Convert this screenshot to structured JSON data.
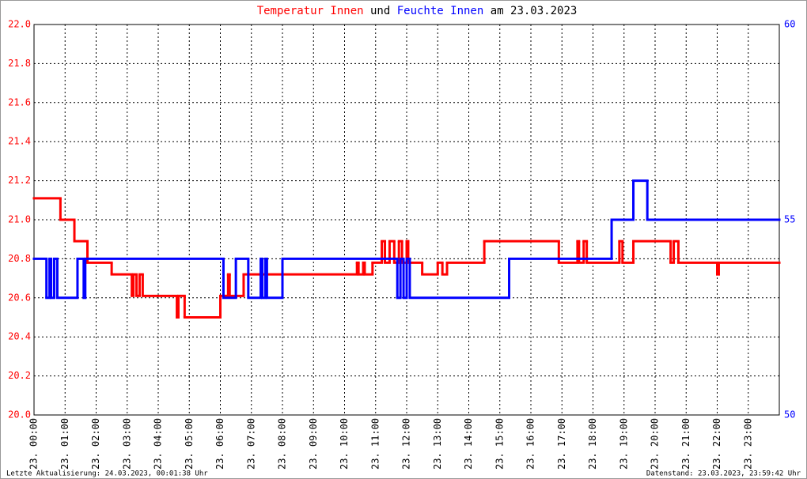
{
  "chart_data": {
    "type": "step-line",
    "title_joiner": "und",
    "title_date": "am 23.03.2023",
    "footer_left": "Letzte Aktualisierung: 24.03.2023, 00:01:38 Uhr",
    "footer_right": "Datenstand: 23.03.2023, 23:59:42 Uhr",
    "xlim": [
      0,
      24
    ],
    "xticks": [
      {
        "value": 0,
        "label": "23. 00:00"
      },
      {
        "value": 1,
        "label": "23. 01:00"
      },
      {
        "value": 2,
        "label": "23. 02:00"
      },
      {
        "value": 3,
        "label": "23. 03:00"
      },
      {
        "value": 4,
        "label": "23. 04:00"
      },
      {
        "value": 5,
        "label": "23. 05:00"
      },
      {
        "value": 6,
        "label": "23. 06:00"
      },
      {
        "value": 7,
        "label": "23. 07:00"
      },
      {
        "value": 8,
        "label": "23. 08:00"
      },
      {
        "value": 9,
        "label": "23. 09:00"
      },
      {
        "value": 10,
        "label": "23. 10:00"
      },
      {
        "value": 11,
        "label": "23. 11:00"
      },
      {
        "value": 12,
        "label": "23. 12:00"
      },
      {
        "value": 13,
        "label": "23. 13:00"
      },
      {
        "value": 14,
        "label": "23. 14:00"
      },
      {
        "value": 15,
        "label": "23. 15:00"
      },
      {
        "value": 16,
        "label": "23. 16:00"
      },
      {
        "value": 17,
        "label": "23. 17:00"
      },
      {
        "value": 18,
        "label": "23. 18:00"
      },
      {
        "value": 19,
        "label": "23. 19:00"
      },
      {
        "value": 20,
        "label": "23. 20:00"
      },
      {
        "value": 21,
        "label": "23. 21:00"
      },
      {
        "value": 22,
        "label": "23. 22:00"
      },
      {
        "value": 23,
        "label": "23. 23:00"
      }
    ],
    "ylim": [
      20,
      22
    ],
    "yticks": [
      {
        "value": 20,
        "label": "20.0"
      },
      20.2,
      20.4,
      20.6,
      20.8,
      {
        "value": 21,
        "label": "21.0"
      },
      21.2,
      21.4,
      21.6,
      21.8,
      {
        "value": 22,
        "label": "22.0"
      }
    ],
    "y2lim": [
      50,
      60
    ],
    "y2ticks": [
      50,
      55,
      60
    ],
    "grid": true,
    "series": [
      {
        "name": "Temperatur Innen",
        "color": "#ff0000",
        "axis": "y",
        "x": [
          0,
          0.85,
          1.3,
          1.72,
          2.5,
          3.15,
          3.2,
          3.3,
          3.4,
          3.5,
          4.6,
          4.65,
          4.85,
          6.0,
          6.25,
          6.3,
          6.75,
          10.4,
          10.45,
          10.6,
          10.65,
          10.9,
          11.2,
          11.3,
          11.45,
          11.6,
          11.75,
          11.85,
          12.0,
          12.05,
          12.5,
          13.0,
          13.15,
          13.3,
          14.5,
          16.9,
          17.5,
          17.55,
          17.7,
          17.8,
          18.85,
          18.95,
          19.3,
          20.5,
          20.6,
          20.75,
          22.0,
          22.05
        ],
        "values": [
          21.11,
          21.0,
          20.89,
          20.78,
          20.72,
          20.61,
          20.72,
          20.61,
          20.72,
          20.61,
          20.5,
          20.61,
          20.5,
          20.61,
          20.72,
          20.61,
          20.72,
          20.78,
          20.72,
          20.78,
          20.72,
          20.78,
          20.89,
          20.78,
          20.89,
          20.78,
          20.89,
          20.78,
          20.89,
          20.78,
          20.72,
          20.78,
          20.72,
          20.78,
          20.89,
          20.78,
          20.89,
          20.78,
          20.89,
          20.78,
          20.89,
          20.78,
          20.89,
          20.78,
          20.89,
          20.78,
          20.72,
          20.78
        ]
      },
      {
        "name": "Feuchte Innen",
        "color": "#0000ff",
        "axis": "y2",
        "x": [
          0,
          0.4,
          0.5,
          0.55,
          0.65,
          0.75,
          1.4,
          1.6,
          1.65,
          6.1,
          6.5,
          6.9,
          7.3,
          7.35,
          7.45,
          7.5,
          8.0,
          11.7,
          11.8,
          11.9,
          12.0,
          12.1,
          15.3,
          18.6,
          19.3,
          19.75
        ],
        "values": [
          54,
          53,
          54,
          53,
          54,
          53,
          54,
          53,
          54,
          53,
          54,
          53,
          54,
          53,
          54,
          53,
          54,
          53,
          54,
          53,
          54,
          53,
          54,
          55,
          56,
          55
        ]
      }
    ]
  }
}
